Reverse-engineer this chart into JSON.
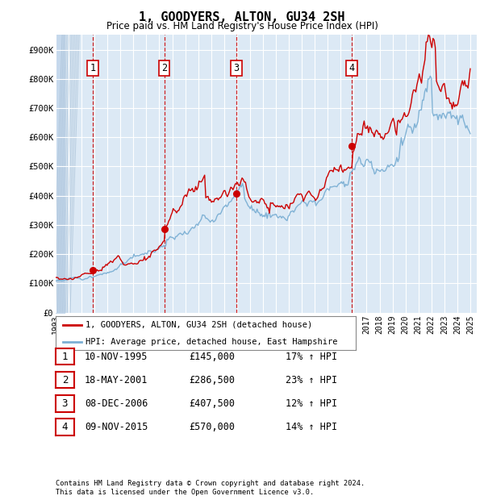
{
  "title": "1, GOODYERS, ALTON, GU34 2SH",
  "subtitle": "Price paid vs. HM Land Registry's House Price Index (HPI)",
  "xlim": [
    1993.0,
    2025.5
  ],
  "ylim": [
    0,
    950000
  ],
  "yticks": [
    0,
    100000,
    200000,
    300000,
    400000,
    500000,
    600000,
    700000,
    800000,
    900000
  ],
  "ytick_labels": [
    "£0",
    "£100K",
    "£200K",
    "£300K",
    "£400K",
    "£500K",
    "£600K",
    "£700K",
    "£800K",
    "£900K"
  ],
  "xtick_years": [
    1993,
    1994,
    1995,
    1996,
    1997,
    1998,
    1999,
    2000,
    2001,
    2002,
    2003,
    2004,
    2005,
    2006,
    2007,
    2008,
    2009,
    2010,
    2011,
    2012,
    2013,
    2014,
    2015,
    2016,
    2017,
    2018,
    2019,
    2020,
    2021,
    2022,
    2023,
    2024,
    2025
  ],
  "sale_color": "#cc0000",
  "hpi_color": "#7bafd4",
  "bg_color": "#dce9f5",
  "grid_color": "#ffffff",
  "vline_color": "#cc0000",
  "purchase_points": [
    {
      "label": 1,
      "year": 1995.87,
      "price": 145000,
      "date": "10-NOV-1995",
      "pct": "17%"
    },
    {
      "label": 2,
      "year": 2001.38,
      "price": 286500,
      "date": "18-MAY-2001",
      "pct": "23%"
    },
    {
      "label": 3,
      "year": 2006.94,
      "price": 407500,
      "date": "08-DEC-2006",
      "pct": "12%"
    },
    {
      "label": 4,
      "year": 2015.86,
      "price": 570000,
      "date": "09-NOV-2015",
      "pct": "14%"
    }
  ],
  "legend_line1": "1, GOODYERS, ALTON, GU34 2SH (detached house)",
  "legend_line2": "HPI: Average price, detached house, East Hampshire",
  "table_rows": [
    [
      "1",
      "10-NOV-1995",
      "£145,000",
      "17% ↑ HPI"
    ],
    [
      "2",
      "18-MAY-2001",
      "£286,500",
      "23% ↑ HPI"
    ],
    [
      "3",
      "08-DEC-2006",
      "£407,500",
      "12% ↑ HPI"
    ],
    [
      "4",
      "09-NOV-2015",
      "£570,000",
      "14% ↑ HPI"
    ]
  ],
  "footnote1": "Contains HM Land Registry data © Crown copyright and database right 2024.",
  "footnote2": "This data is licensed under the Open Government Licence v3.0."
}
